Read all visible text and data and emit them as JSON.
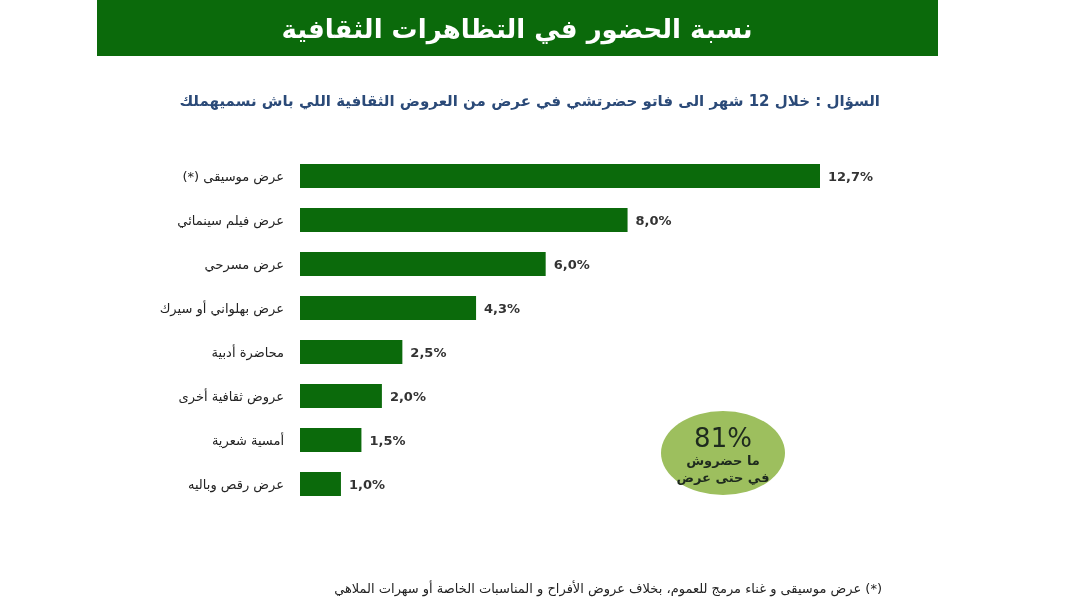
{
  "chart_data": {
    "type": "bar",
    "orientation": "horizontal",
    "title": "نسبة الحضور في التظاهرات الثقافية",
    "subtitle": "السؤال : خلال 12 شهر الى فاتو حضرتشي في عرض من العروض الثقافية اللي باش نسميهملك",
    "categories": [
      "عرض موسيقى  (*)",
      "عرض فيلم سينمائي",
      "عرض مسرحي",
      "عرض بهلواني أو  سيرك",
      "محاضرة أدبية",
      "عروض ثقافية أخرى",
      "أمسية شعرية",
      "عرض رقص وباليه"
    ],
    "values": [
      12.7,
      8.0,
      6.0,
      4.3,
      2.5,
      2.0,
      1.5,
      1.0
    ],
    "value_labels": [
      "12,7%",
      "8,0%",
      "6,0%",
      "4,3%",
      "2,5%",
      "2,0%",
      "1,5%",
      "1,0%"
    ],
    "color": "#0b6a0b",
    "annotations": [
      "81%",
      "ما حضروش في حتى عرض",
      "(*) عرض موسيقى و غناء مرمج للعموم، بخلاف عروض الأفراح و المناسبات الخاصة أو سهرات الملاهي"
    ]
  }
}
